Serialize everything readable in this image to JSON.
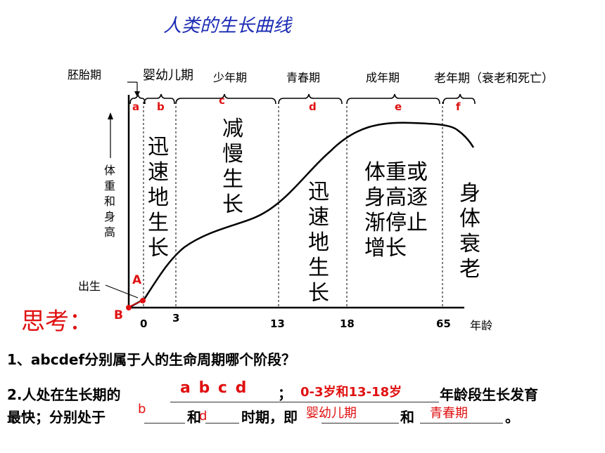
{
  "title": "人类的生长曲线",
  "stages": {
    "embryo": "胚胎期",
    "infant": "婴幼儿期",
    "juvenile": "少年期",
    "youth": "青春期",
    "adult": "成年期",
    "old": "老年期（衰老和死亡）"
  },
  "letters": [
    "a",
    "b",
    "c",
    "d",
    "e",
    "f"
  ],
  "y_axis_label": "体重和身高",
  "x_axis_label": "年龄",
  "x_ticks": [
    "0",
    "3",
    "13",
    "18",
    "65"
  ],
  "region_texts": {
    "b": "迅速地生长",
    "c": "减慢生长",
    "d": "迅速地生长",
    "e_lines": [
      "体重或",
      "身高逐",
      "渐停止",
      "增长"
    ],
    "f": "身体衰老"
  },
  "points": {
    "A": "A",
    "B": "B",
    "birth": "出生"
  },
  "think": "思考：",
  "question1": "1、abcdef分别属于人的生命周期哪个阶段？",
  "question2": {
    "prefix": "2.人处在生长期的",
    "answer_stages": "a b c d",
    "semicolon": "；",
    "answer_ages": "0-3岁和13-18岁",
    "suffix": "年龄段生长发育",
    "line2_a": "最快；分别处于",
    "blank1": "b",
    "and1": "和",
    "blank2": "d",
    "line2_b": "时期，即",
    "answer_infant": "婴幼儿期",
    "and2": "和",
    "answer_youth": "青春期",
    "end": "。"
  }
}
